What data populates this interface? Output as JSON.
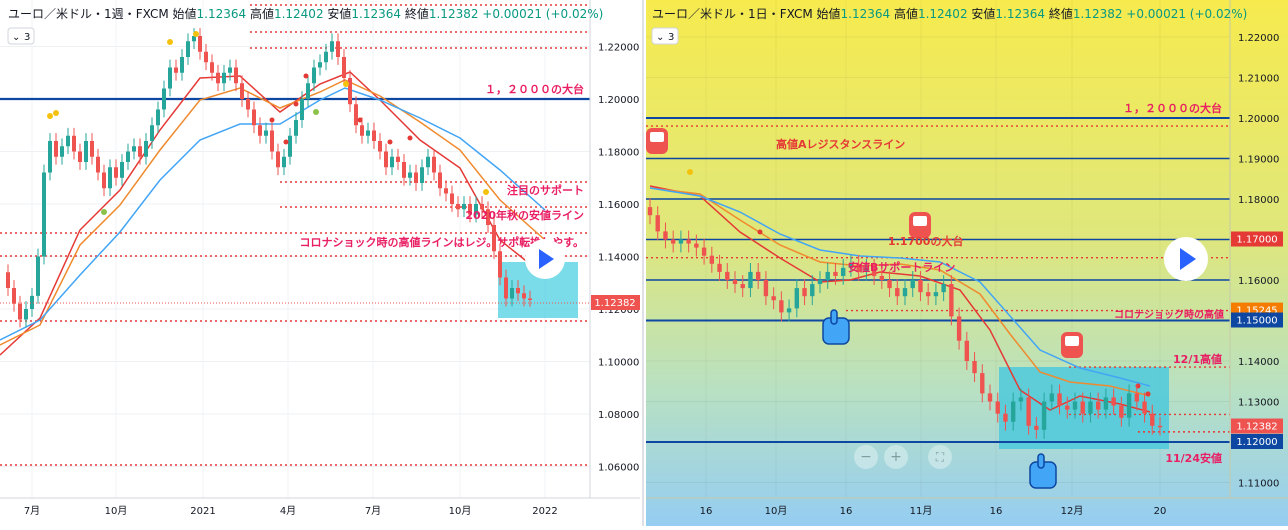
{
  "chart_data": [
    {
      "type": "candlestick",
      "pair": "ユーロ／米ドル",
      "interval": "1週",
      "broker": "FXCM",
      "ohlc": {
        "open_label": "始値",
        "open": "1.12364",
        "high_label": "高値",
        "high": "1.12402",
        "low_label": "安値",
        "low": "1.12364",
        "close_label": "終値",
        "close": "1.12382",
        "change": "+0.00021 (+0.02%)"
      },
      "indicator_count": "3",
      "y_ticks": [
        "1.22000",
        "1.20000",
        "1.18000",
        "1.16000",
        "1.14000",
        "1.12000",
        "1.10000",
        "1.08000",
        "1.06000"
      ],
      "x_ticks": [
        "7月",
        "10月",
        "2021",
        "4月",
        "7月",
        "10月",
        "2022"
      ],
      "current_price": "1.12382",
      "annotations": [
        "１，２０００の大台",
        "注目のサポート",
        "2020年秋の安値ライン",
        "コロナショック時の高値ラインはレジ。サポ転換しやす。"
      ],
      "colors": {
        "up": "#26a69a",
        "down": "#ef5350",
        "ma_fast": "#e53935",
        "ma_mid": "#ef8a2e",
        "ma_slow": "#42a5f5",
        "level": "#e53935",
        "key_level": "#0d47a1",
        "zone": "#4dd0e1",
        "annotation": "#e91e63"
      }
    },
    {
      "type": "candlestick",
      "pair": "ユーロ／米ドル",
      "interval": "1日",
      "broker": "FXCM",
      "ohlc": {
        "open_label": "始値",
        "open": "1.12364",
        "high_label": "高値",
        "high": "1.12402",
        "low_label": "安値",
        "low": "1.12364",
        "close_label": "終値",
        "close": "1.12382",
        "change": "+0.00021 (+0.02%)"
      },
      "indicator_count": "3",
      "y_ticks": [
        "1.22000",
        "1.21000",
        "1.20000",
        "1.19000",
        "1.18000",
        "1.17000",
        "1.16000",
        "1.15000",
        "1.14000",
        "1.13000",
        "1.12000",
        "1.11000"
      ],
      "x_ticks": [
        "16",
        "10月",
        "16",
        "11月",
        "16",
        "12月",
        "20"
      ],
      "price_tags": [
        "1.17000",
        "1.15245",
        "1.15000",
        "1.12382",
        "1.12000"
      ],
      "annotations": [
        "１，２０００の大台",
        "高値Aレジスタンスライン",
        "1.1700の大台",
        "安値Bサポートライン",
        "コロナショック時の高値",
        "12/1高値",
        "11/24安値"
      ],
      "colors": {
        "up": "#26a69a",
        "down": "#ef5350",
        "ma_fast": "#e53935",
        "ma_mid": "#ef8a2e",
        "ma_slow": "#42a5f5",
        "level": "#0d47a1",
        "zone": "#4dd0e1",
        "annotation": "#e91e63"
      }
    }
  ]
}
